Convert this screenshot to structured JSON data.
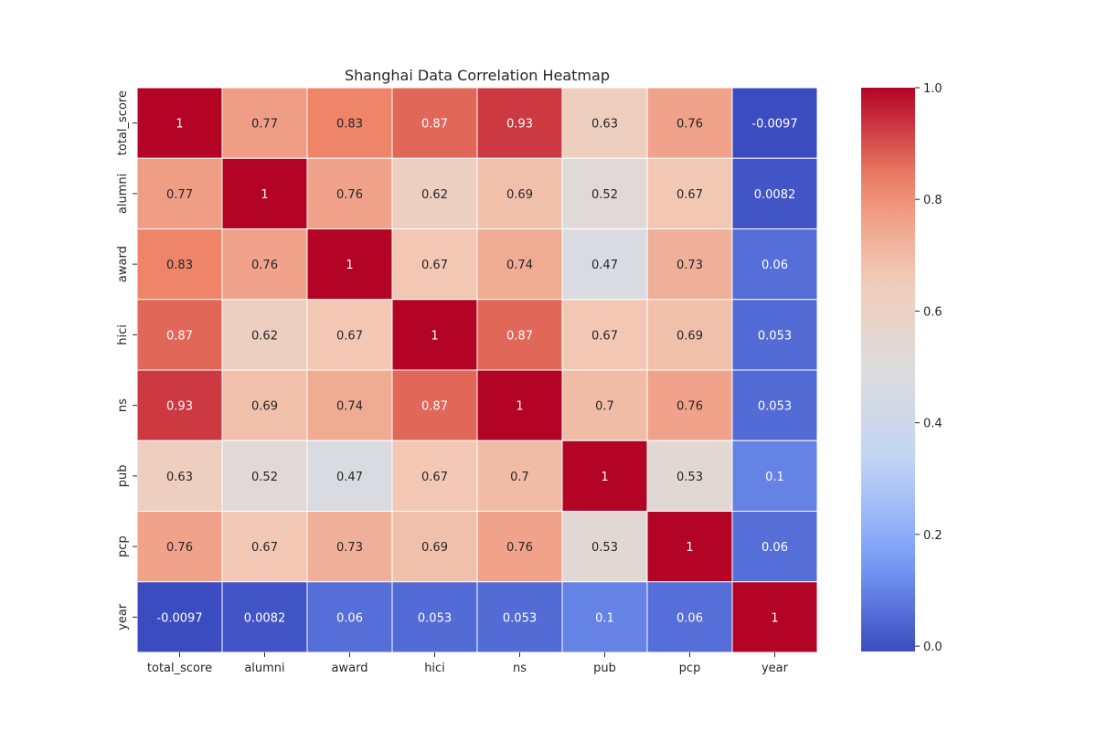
{
  "chart_data": {
    "type": "heatmap",
    "title": "Shanghai Data Correlation Heatmap",
    "xlabel": "",
    "ylabel": "",
    "x_categories": [
      "total_score",
      "alumni",
      "award",
      "hici",
      "ns",
      "pub",
      "pcp",
      "year"
    ],
    "y_categories": [
      "total_score",
      "alumni",
      "award",
      "hici",
      "ns",
      "pub",
      "pcp",
      "year"
    ],
    "values": [
      [
        1,
        0.77,
        0.83,
        0.87,
        0.93,
        0.63,
        0.76,
        -0.0097
      ],
      [
        0.77,
        1,
        0.76,
        0.62,
        0.69,
        0.52,
        0.67,
        0.0082
      ],
      [
        0.83,
        0.76,
        1,
        0.67,
        0.74,
        0.47,
        0.73,
        0.06
      ],
      [
        0.87,
        0.62,
        0.67,
        1,
        0.87,
        0.67,
        0.69,
        0.053
      ],
      [
        0.93,
        0.69,
        0.74,
        0.87,
        1,
        0.7,
        0.76,
        0.053
      ],
      [
        0.63,
        0.52,
        0.47,
        0.67,
        0.7,
        1,
        0.53,
        0.1
      ],
      [
        0.76,
        0.67,
        0.73,
        0.69,
        0.76,
        0.53,
        1,
        0.06
      ],
      [
        -0.0097,
        0.0082,
        0.06,
        0.053,
        0.053,
        0.1,
        0.06,
        1
      ]
    ],
    "annotations": [
      [
        "1",
        "0.77",
        "0.83",
        "0.87",
        "0.93",
        "0.63",
        "0.76",
        "-0.0097"
      ],
      [
        "0.77",
        "1",
        "0.76",
        "0.62",
        "0.69",
        "0.52",
        "0.67",
        "0.0082"
      ],
      [
        "0.83",
        "0.76",
        "1",
        "0.67",
        "0.74",
        "0.47",
        "0.73",
        "0.06"
      ],
      [
        "0.87",
        "0.62",
        "0.67",
        "1",
        "0.87",
        "0.67",
        "0.69",
        "0.053"
      ],
      [
        "0.93",
        "0.69",
        "0.74",
        "0.87",
        "1",
        "0.7",
        "0.76",
        "0.053"
      ],
      [
        "0.63",
        "0.52",
        "0.47",
        "0.67",
        "0.7",
        "1",
        "0.53",
        "0.1"
      ],
      [
        "0.76",
        "0.67",
        "0.73",
        "0.69",
        "0.76",
        "0.53",
        "1",
        "0.06"
      ],
      [
        "-0.0097",
        "0.0082",
        "0.06",
        "0.053",
        "0.053",
        "0.1",
        "0.06",
        "1"
      ]
    ],
    "colormap": "coolwarm",
    "colormap_stops": [
      "#3b4cc0",
      "#7b9ff9",
      "#c0d4f5",
      "#dddcdc",
      "#f2cbb7",
      "#ee8468",
      "#b40426"
    ],
    "vmin": -0.0097,
    "vmax": 1,
    "colorbar": {
      "ticks": [
        0.0,
        0.2,
        0.4,
        0.6,
        0.8,
        1.0
      ],
      "tick_labels": [
        "0.0",
        "0.2",
        "0.4",
        "0.6",
        "0.8",
        "1.0"
      ],
      "placement": "right"
    },
    "grid": false,
    "cell_border_color": "#ffffff"
  }
}
